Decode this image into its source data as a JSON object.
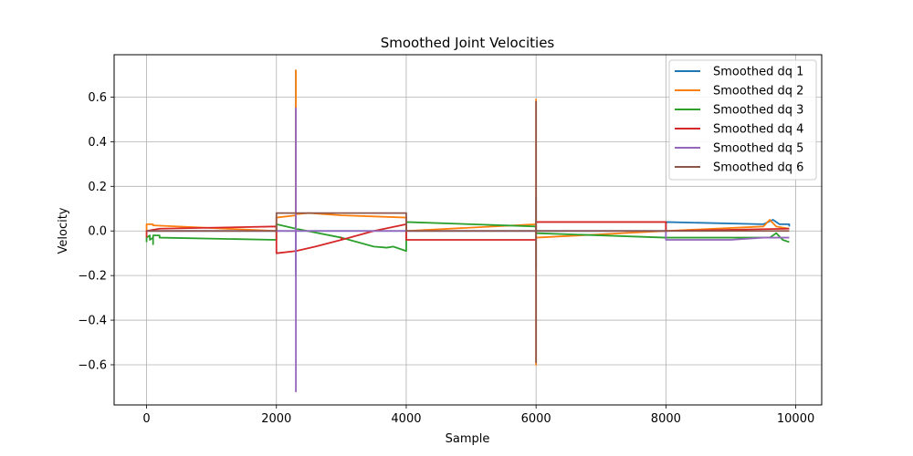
{
  "chart_data": {
    "type": "line",
    "title": "Smoothed Joint Velocities",
    "xlabel": "Sample",
    "ylabel": "Velocity",
    "xlim": [
      -500,
      10400
    ],
    "ylim": [
      -0.78,
      0.79
    ],
    "xticks": [
      0,
      2000,
      4000,
      6000,
      8000,
      10000
    ],
    "xtick_labels": [
      "0",
      "2000",
      "4000",
      "6000",
      "8000",
      "10000"
    ],
    "yticks": [
      -0.6,
      -0.4,
      -0.2,
      0.0,
      0.2,
      0.4,
      0.6
    ],
    "ytick_labels": [
      "−0.6",
      "−0.4",
      "−0.2",
      "0.0",
      "0.2",
      "0.4",
      "0.6"
    ],
    "grid": true,
    "legend_position": "top-right",
    "series": [
      {
        "name": "Smoothed dq 1",
        "color": "#1f77b4",
        "points": [
          [
            0,
            0.0
          ],
          [
            2000,
            0.0
          ],
          [
            2300,
            0.0
          ],
          [
            2300,
            0.72
          ],
          [
            2300,
            -0.2
          ],
          [
            2300,
            0.0
          ],
          [
            4000,
            0.0
          ],
          [
            6000,
            0.0
          ],
          [
            6000,
            0.15
          ],
          [
            6000,
            -0.17
          ],
          [
            6000,
            0.0
          ],
          [
            8000,
            0.0
          ],
          [
            8000,
            0.04
          ],
          [
            9500,
            0.03
          ],
          [
            9650,
            0.05
          ],
          [
            9750,
            0.03
          ],
          [
            9900,
            0.03
          ],
          [
            9900,
            0.02
          ]
        ]
      },
      {
        "name": "Smoothed dq 2",
        "color": "#ff7f0e",
        "points": [
          [
            0,
            0.0
          ],
          [
            0,
            0.03
          ],
          [
            100,
            0.03
          ],
          [
            100,
            0.025
          ],
          [
            2000,
            0.0
          ],
          [
            2000,
            0.06
          ],
          [
            2300,
            0.07
          ],
          [
            2300,
            0.72
          ],
          [
            2300,
            0.0
          ],
          [
            2300,
            0.075
          ],
          [
            2500,
            0.08
          ],
          [
            3000,
            0.07
          ],
          [
            3500,
            0.065
          ],
          [
            4000,
            0.06
          ],
          [
            4000,
            0.0
          ],
          [
            6000,
            0.03
          ],
          [
            6000,
            0.59
          ],
          [
            6000,
            -0.6
          ],
          [
            6000,
            -0.03
          ],
          [
            8000,
            0.0
          ],
          [
            9500,
            0.02
          ],
          [
            9600,
            0.05
          ],
          [
            9700,
            0.02
          ],
          [
            9900,
            0.01
          ]
        ]
      },
      {
        "name": "Smoothed dq 3",
        "color": "#2ca02c",
        "points": [
          [
            0,
            -0.05
          ],
          [
            0,
            -0.03
          ],
          [
            50,
            -0.02
          ],
          [
            50,
            -0.04
          ],
          [
            100,
            -0.03
          ],
          [
            100,
            -0.06
          ],
          [
            100,
            -0.02
          ],
          [
            200,
            -0.02
          ],
          [
            200,
            -0.03
          ],
          [
            2000,
            -0.04
          ],
          [
            2000,
            0.03
          ],
          [
            2300,
            0.01
          ],
          [
            2300,
            0.02
          ],
          [
            2300,
            0.01
          ],
          [
            3000,
            -0.03
          ],
          [
            3500,
            -0.07
          ],
          [
            3700,
            -0.075
          ],
          [
            3800,
            -0.07
          ],
          [
            4000,
            -0.09
          ],
          [
            4000,
            0.04
          ],
          [
            6000,
            0.02
          ],
          [
            6000,
            -0.01
          ],
          [
            8000,
            -0.03
          ],
          [
            9500,
            -0.03
          ],
          [
            9600,
            -0.03
          ],
          [
            9700,
            -0.01
          ],
          [
            9800,
            -0.04
          ],
          [
            9900,
            -0.05
          ]
        ]
      },
      {
        "name": "Smoothed dq 4",
        "color": "#d62728",
        "points": [
          [
            0,
            -0.03
          ],
          [
            0,
            0.0
          ],
          [
            200,
            0.01
          ],
          [
            2000,
            0.02
          ],
          [
            2000,
            -0.1
          ],
          [
            2300,
            -0.09
          ],
          [
            2600,
            -0.07
          ],
          [
            3000,
            -0.04
          ],
          [
            3000,
            -0.03
          ],
          [
            3000,
            -0.04
          ],
          [
            3500,
            0.0
          ],
          [
            4000,
            0.03
          ],
          [
            4000,
            -0.04
          ],
          [
            6000,
            -0.04
          ],
          [
            6000,
            0.04
          ],
          [
            8000,
            0.04
          ],
          [
            8000,
            0.0
          ],
          [
            9900,
            0.01
          ]
        ]
      },
      {
        "name": "Smoothed dq 5",
        "color": "#9467bd",
        "points": [
          [
            0,
            0.0
          ],
          [
            2000,
            0.0
          ],
          [
            2300,
            0.0
          ],
          [
            2300,
            0.55
          ],
          [
            2300,
            -0.72
          ],
          [
            2300,
            0.0
          ],
          [
            4000,
            0.0
          ],
          [
            6000,
            0.0
          ],
          [
            8000,
            0.0
          ],
          [
            8000,
            -0.04
          ],
          [
            9000,
            -0.04
          ],
          [
            9500,
            -0.03
          ],
          [
            9900,
            -0.03
          ]
        ]
      },
      {
        "name": "Smoothed dq 6",
        "color": "#8c564b",
        "points": [
          [
            0,
            0.0
          ],
          [
            2000,
            0.0
          ],
          [
            2000,
            0.08
          ],
          [
            4000,
            0.08
          ],
          [
            4000,
            0.0
          ],
          [
            6000,
            0.0
          ],
          [
            6000,
            0.58
          ],
          [
            6000,
            -0.59
          ],
          [
            6000,
            0.0
          ],
          [
            8000,
            0.0
          ],
          [
            9900,
            0.0
          ]
        ]
      }
    ]
  }
}
